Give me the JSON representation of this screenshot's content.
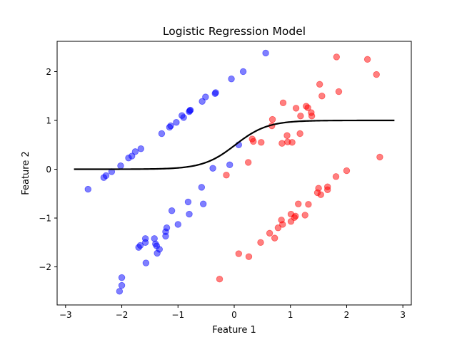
{
  "chart_data": {
    "type": "scatter",
    "title": "Logistic Regression Model",
    "xlabel": "Feature 1",
    "ylabel": "Feature 2",
    "xlim": [
      -3.15,
      3.15
    ],
    "ylim": [
      -2.78,
      2.62
    ],
    "xticks": [
      -3,
      -2,
      -1,
      0,
      1,
      2,
      3
    ],
    "yticks": [
      -2,
      -1,
      0,
      1,
      2
    ],
    "grid": false,
    "legend": "none",
    "colors": {
      "class0": "#0000ff",
      "class1": "#ff0000",
      "curve": "#000000"
    },
    "point_alpha": 0.5,
    "series": [
      {
        "color": "#0000ff",
        "points": [
          [
            -2.6,
            -0.41
          ],
          [
            -2.32,
            -0.17
          ],
          [
            -2.28,
            -0.13
          ],
          [
            -2.18,
            -0.05
          ],
          [
            -2.02,
            0.07
          ],
          [
            -1.88,
            0.23
          ],
          [
            -1.82,
            0.27
          ],
          [
            -1.76,
            0.36
          ],
          [
            -1.66,
            0.42
          ],
          [
            -1.29,
            0.73
          ],
          [
            -1.15,
            0.86
          ],
          [
            -1.13,
            0.89
          ],
          [
            -1.03,
            0.96
          ],
          [
            -0.93,
            1.1
          ],
          [
            -0.9,
            1.06
          ],
          [
            -0.8,
            1.18
          ],
          [
            -0.79,
            1.2
          ],
          [
            -0.78,
            1.21
          ],
          [
            -0.57,
            1.39
          ],
          [
            -0.51,
            1.48
          ],
          [
            -0.34,
            1.55
          ],
          [
            -0.33,
            1.57
          ],
          [
            -0.05,
            1.85
          ],
          [
            0.16,
            2.0
          ],
          [
            0.56,
            2.38
          ],
          [
            -0.38,
            0.02
          ],
          [
            0.08,
            0.5
          ],
          [
            -0.08,
            0.09
          ],
          [
            -0.58,
            -0.37
          ],
          [
            -0.55,
            -0.71
          ],
          [
            -0.82,
            -0.67
          ],
          [
            -0.8,
            -0.92
          ],
          [
            -1.0,
            -1.13
          ],
          [
            -1.11,
            -0.85
          ],
          [
            -1.22,
            -1.28
          ],
          [
            -1.2,
            -1.2
          ],
          [
            -1.22,
            -1.37
          ],
          [
            -1.42,
            -1.42
          ],
          [
            -1.4,
            -1.53
          ],
          [
            -1.38,
            -1.57
          ],
          [
            -1.37,
            -1.72
          ],
          [
            -1.33,
            -1.64
          ],
          [
            -1.58,
            -1.42
          ],
          [
            -1.58,
            -1.5
          ],
          [
            -1.67,
            -1.56
          ],
          [
            -1.7,
            -1.6
          ],
          [
            -1.57,
            -1.92
          ],
          [
            -2.0,
            -2.22
          ],
          [
            -2.0,
            -2.38
          ],
          [
            -2.04,
            -2.5
          ]
        ]
      },
      {
        "color": "#ff0000",
        "points": [
          [
            1.82,
            2.3
          ],
          [
            2.37,
            2.25
          ],
          [
            2.53,
            1.94
          ],
          [
            1.52,
            1.74
          ],
          [
            1.86,
            1.59
          ],
          [
            1.56,
            1.5
          ],
          [
            0.87,
            1.36
          ],
          [
            1.28,
            1.29
          ],
          [
            1.31,
            1.26
          ],
          [
            1.1,
            1.25
          ],
          [
            1.37,
            1.16
          ],
          [
            1.38,
            1.09
          ],
          [
            1.18,
            1.09
          ],
          [
            0.68,
            1.02
          ],
          [
            0.67,
            0.89
          ],
          [
            1.17,
            0.73
          ],
          [
            0.94,
            0.69
          ],
          [
            0.32,
            0.62
          ],
          [
            0.34,
            0.57
          ],
          [
            0.48,
            0.55
          ],
          [
            0.85,
            0.53
          ],
          [
            0.95,
            0.56
          ],
          [
            1.03,
            0.55
          ],
          [
            2.59,
            0.25
          ],
          [
            0.25,
            0.14
          ],
          [
            2.0,
            -0.03
          ],
          [
            -0.14,
            -0.12
          ],
          [
            1.81,
            -0.15
          ],
          [
            1.66,
            -0.36
          ],
          [
            1.66,
            -0.42
          ],
          [
            1.5,
            -0.39
          ],
          [
            1.48,
            -0.48
          ],
          [
            1.54,
            -0.52
          ],
          [
            1.32,
            -0.72
          ],
          [
            1.14,
            -0.71
          ],
          [
            1.01,
            -0.92
          ],
          [
            1.07,
            -0.99
          ],
          [
            1.09,
            -0.96
          ],
          [
            1.01,
            -1.07
          ],
          [
            1.26,
            -0.94
          ],
          [
            0.84,
            -1.04
          ],
          [
            0.86,
            -1.13
          ],
          [
            0.78,
            -1.2
          ],
          [
            0.63,
            -1.31
          ],
          [
            0.72,
            -1.41
          ],
          [
            0.47,
            -1.5
          ],
          [
            0.08,
            -1.73
          ],
          [
            0.26,
            -1.79
          ],
          [
            -0.26,
            -2.25
          ]
        ]
      }
    ],
    "curve": {
      "type": "line",
      "x_range": [
        -2.85,
        2.85
      ],
      "function": "1/(1+exp(-3.5*(x-0.02)))",
      "color": "#000000"
    }
  }
}
